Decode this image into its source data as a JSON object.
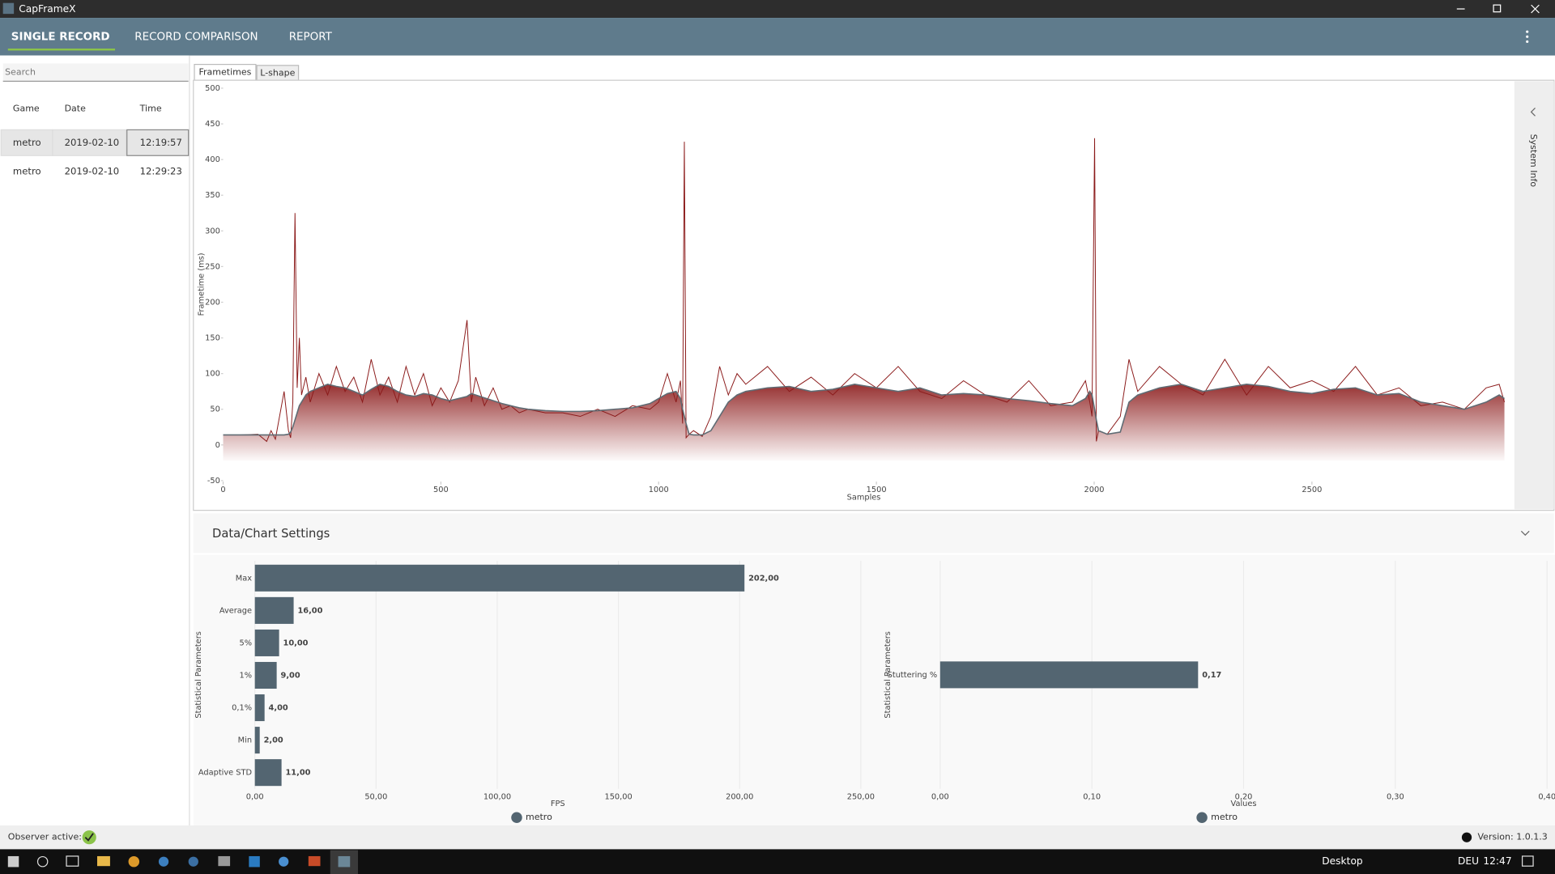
{
  "window": {
    "title": "CapFrameX"
  },
  "nav": {
    "items": [
      "SINGLE RECORD",
      "RECORD COMPARISON",
      "REPORT"
    ]
  },
  "sidebar": {
    "search": "Search",
    "table": {
      "headers": [
        "Game",
        "Date",
        "Time"
      ],
      "rows": [
        [
          "metro",
          "2019-02-10",
          "12:19:57"
        ],
        [
          "metro",
          "2019-02-10",
          "12:29:23"
        ]
      ]
    }
  },
  "tabs": [
    "Frametimes",
    "L-shape"
  ],
  "side_panel": "System Info",
  "settings_title": "Data/Chart Settings",
  "chart_data": [
    {
      "type": "line",
      "y_label": "Frametime (ms)",
      "x_label": "Samples",
      "x": [
        0,
        40,
        80,
        100,
        110,
        120,
        140,
        150,
        155,
        160,
        165,
        170,
        175,
        180,
        190,
        200,
        220,
        240,
        260,
        280,
        300,
        320,
        340,
        360,
        380,
        400,
        420,
        440,
        460,
        480,
        500,
        520,
        540,
        560,
        570,
        580,
        600,
        620,
        640,
        660,
        680,
        700,
        740,
        780,
        820,
        860,
        900,
        940,
        980,
        1000,
        1020,
        1040,
        1050,
        1055,
        1059,
        1063,
        1070,
        1080,
        1100,
        1120,
        1140,
        1160,
        1180,
        1200,
        1250,
        1300,
        1350,
        1400,
        1450,
        1500,
        1550,
        1600,
        1650,
        1700,
        1750,
        1800,
        1850,
        1900,
        1950,
        1980,
        1990,
        1995,
        2001,
        2005,
        2010,
        2030,
        2060,
        2080,
        2100,
        2150,
        2200,
        2250,
        2300,
        2350,
        2400,
        2450,
        2500,
        2550,
        2600,
        2650,
        2700,
        2750,
        2800,
        2850,
        2900,
        2930,
        2942
      ],
      "series": [
        {
          "color": "#8b1a1a",
          "values": [
            14,
            14,
            15,
            5,
            20,
            8,
            75,
            20,
            10,
            60,
            325,
            80,
            150,
            70,
            95,
            60,
            100,
            70,
            110,
            75,
            95,
            60,
            120,
            70,
            95,
            60,
            110,
            70,
            100,
            55,
            80,
            60,
            90,
            175,
            60,
            95,
            55,
            80,
            50,
            55,
            45,
            50,
            45,
            45,
            40,
            50,
            40,
            55,
            50,
            60,
            100,
            60,
            90,
            30,
            425,
            10,
            15,
            20,
            12,
            40,
            110,
            70,
            100,
            85,
            110,
            75,
            95,
            70,
            100,
            80,
            110,
            75,
            65,
            90,
            70,
            60,
            90,
            55,
            60,
            90,
            60,
            40,
            430,
            5,
            20,
            15,
            40,
            120,
            75,
            110,
            85,
            70,
            120,
            70,
            110,
            80,
            90,
            75,
            110,
            70,
            80,
            55,
            60,
            50,
            80,
            85,
            60
          ]
        },
        {
          "color": "#5f6b73",
          "values": [
            14,
            14,
            14,
            14,
            14,
            14,
            14,
            15,
            18,
            25,
            35,
            45,
            55,
            60,
            70,
            75,
            80,
            85,
            82,
            80,
            75,
            70,
            78,
            85,
            82,
            75,
            70,
            68,
            72,
            70,
            65,
            62,
            65,
            68,
            72,
            70,
            66,
            62,
            58,
            55,
            52,
            50,
            48,
            47,
            47,
            48,
            50,
            52,
            58,
            65,
            72,
            75,
            65,
            50,
            40,
            30,
            15,
            14,
            14,
            20,
            40,
            60,
            70,
            75,
            80,
            82,
            75,
            78,
            85,
            80,
            75,
            80,
            70,
            72,
            70,
            65,
            62,
            58,
            55,
            65,
            75,
            70,
            50,
            35,
            20,
            15,
            18,
            60,
            70,
            80,
            85,
            75,
            80,
            85,
            82,
            75,
            72,
            78,
            80,
            70,
            72,
            60,
            55,
            50,
            60,
            70,
            65
          ]
        }
      ],
      "xlim": [
        0,
        2942
      ],
      "ylim": [
        -50,
        500
      ],
      "xticks": [
        0,
        500,
        1000,
        1500,
        2000,
        2500
      ],
      "yticks": [
        -50,
        0,
        50,
        100,
        150,
        200,
        250,
        300,
        350,
        400,
        450,
        500
      ],
      "grid": false
    },
    {
      "type": "bar",
      "orientation": "horizontal",
      "y_label": "Statistical Parameters",
      "x_label": "FPS",
      "categories": [
        "Max",
        "Average",
        "5%",
        "1%",
        "0,1%",
        "Min",
        "Adaptive STD"
      ],
      "series": [
        {
          "name": "metro",
          "color": "#536571",
          "values": [
            202,
            16,
            10,
            9,
            4,
            2,
            11
          ],
          "value_labels": [
            "202,00",
            "16,00",
            "10,00",
            "9,00",
            "4,00",
            "2,00",
            "11,00"
          ]
        }
      ],
      "xlim": [
        0,
        250
      ],
      "xticks": [
        {
          "value": 0,
          "label": "0,00"
        },
        {
          "value": 50,
          "label": "50,00"
        },
        {
          "value": 100,
          "label": "100,00"
        },
        {
          "value": 150,
          "label": "150,00"
        },
        {
          "value": 200,
          "label": "200,00"
        },
        {
          "value": 250,
          "label": "250,00"
        }
      ],
      "grid": true
    },
    {
      "type": "bar",
      "orientation": "horizontal",
      "y_label": "Statistical Parameters",
      "x_label": "Values",
      "categories": [
        "Stuttering %"
      ],
      "series": [
        {
          "name": "metro",
          "color": "#536571",
          "values": [
            0.17
          ],
          "value_labels": [
            "0,17"
          ]
        }
      ],
      "xlim": [
        0,
        0.4
      ],
      "xticks": [
        {
          "value": 0,
          "label": "0,00"
        },
        {
          "value": 0.1,
          "label": "0,10"
        },
        {
          "value": 0.2,
          "label": "0,20"
        },
        {
          "value": 0.3,
          "label": "0,30"
        },
        {
          "value": 0.4,
          "label": "0,40"
        }
      ],
      "grid": true
    }
  ],
  "status": {
    "observer": "Observer active:",
    "version": "Version: 1.0.1.3"
  },
  "taskbar": {
    "desktop": "Desktop",
    "language": "DEU",
    "time": "12:47"
  }
}
